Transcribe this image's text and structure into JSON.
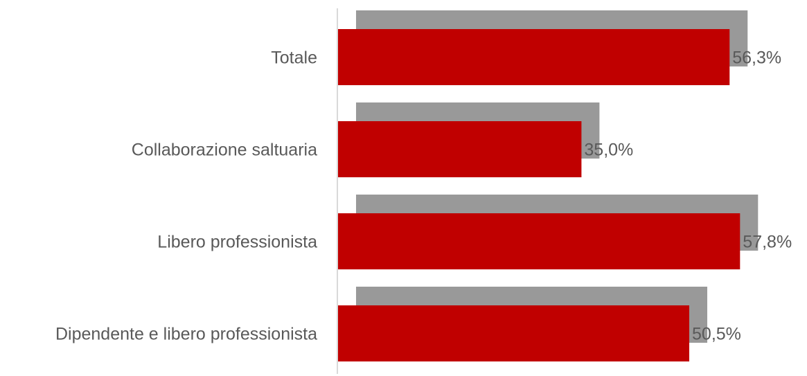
{
  "chart_data": {
    "type": "bar",
    "orientation": "horizontal",
    "categories": [
      "Totale",
      "Collaborazione saltuaria",
      "Libero professionista",
      "Dipendente e libero professionista"
    ],
    "values": [
      56.3,
      35.0,
      57.8,
      50.5
    ],
    "data_labels": [
      "56,3%",
      "35,0%",
      "57,8%",
      "50,5%"
    ],
    "title": "",
    "xlabel": "",
    "ylabel": "",
    "grid": false,
    "legend": "none",
    "bar_color": "#C00000",
    "shadow_color": "#999999",
    "label_color": "#595959",
    "axis_color": "#D9D9D9"
  }
}
